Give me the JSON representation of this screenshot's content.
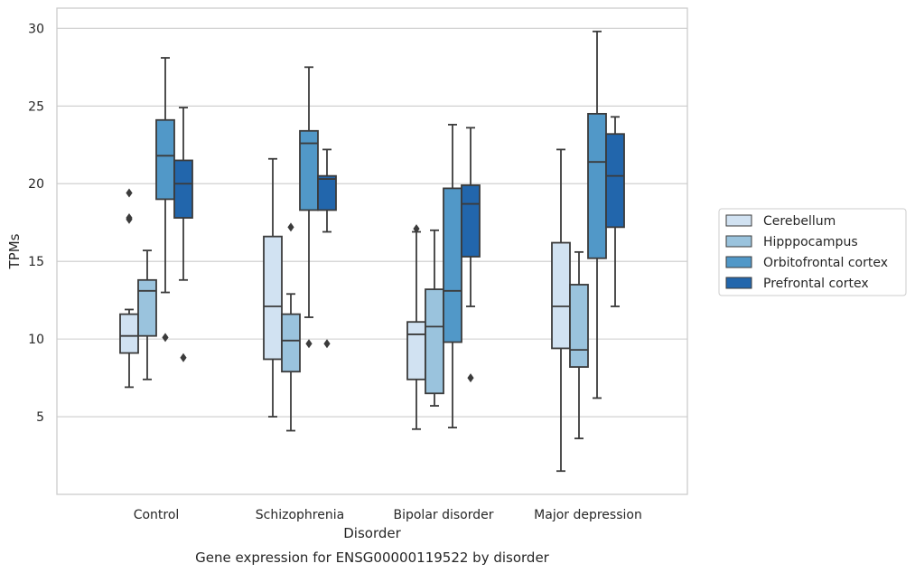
{
  "chart_data": {
    "type": "box",
    "caption": "Gene expression for ENSG00000119522 by disorder",
    "xlabel": "Disorder",
    "ylabel": "TPMs",
    "ylim": [
      0,
      31.3
    ],
    "yticks": [
      5,
      10,
      15,
      20,
      25,
      30
    ],
    "grid": "horizontal",
    "legend_position": "right",
    "categories": [
      "Control",
      "Schizophrenia",
      "Bipolar disorder",
      "Major depression"
    ],
    "series": [
      {
        "name": "Cerebellum",
        "color": "#d1e2f2",
        "boxes": [
          {
            "whisker_low": 6.9,
            "q1": 9.1,
            "median": 10.2,
            "q3": 11.6,
            "whisker_high": 11.9,
            "outliers": [
              19.4,
              17.7,
              17.8
            ]
          },
          {
            "whisker_low": 5.0,
            "q1": 8.7,
            "median": 12.1,
            "q3": 16.6,
            "whisker_high": 21.6,
            "outliers": []
          },
          {
            "whisker_low": 4.2,
            "q1": 7.4,
            "median": 10.3,
            "q3": 11.1,
            "whisker_high": 16.9,
            "outliers": [
              17.1
            ]
          },
          {
            "whisker_low": 1.5,
            "q1": 9.4,
            "median": 12.1,
            "q3": 16.2,
            "whisker_high": 22.2,
            "outliers": []
          }
        ]
      },
      {
        "name": "Hipppocampus",
        "color": "#9ac3dd",
        "boxes": [
          {
            "whisker_low": 7.4,
            "q1": 10.2,
            "median": 13.1,
            "q3": 13.8,
            "whisker_high": 15.7,
            "outliers": []
          },
          {
            "whisker_low": 4.1,
            "q1": 7.9,
            "median": 9.9,
            "q3": 11.6,
            "whisker_high": 12.9,
            "outliers": [
              17.2
            ]
          },
          {
            "whisker_low": 5.7,
            "q1": 6.5,
            "median": 10.8,
            "q3": 13.2,
            "whisker_high": 17.0,
            "outliers": []
          },
          {
            "whisker_low": 3.6,
            "q1": 8.2,
            "median": 9.3,
            "q3": 13.5,
            "whisker_high": 15.6,
            "outliers": []
          }
        ]
      },
      {
        "name": "Orbitofrontal cortex",
        "color": "#5198c8",
        "boxes": [
          {
            "whisker_low": 13.0,
            "q1": 19.0,
            "median": 21.8,
            "q3": 24.1,
            "whisker_high": 28.1,
            "outliers": [
              10.1
            ]
          },
          {
            "whisker_low": 11.4,
            "q1": 18.3,
            "median": 22.6,
            "q3": 23.4,
            "whisker_high": 27.5,
            "outliers": [
              9.7
            ]
          },
          {
            "whisker_low": 4.3,
            "q1": 9.8,
            "median": 13.1,
            "q3": 19.7,
            "whisker_high": 23.8,
            "outliers": []
          },
          {
            "whisker_low": 6.2,
            "q1": 15.2,
            "median": 21.4,
            "q3": 24.5,
            "whisker_high": 29.8,
            "outliers": []
          }
        ]
      },
      {
        "name": "Prefrontal cortex",
        "color": "#2266ac",
        "boxes": [
          {
            "whisker_low": 13.8,
            "q1": 17.8,
            "median": 20.0,
            "q3": 21.5,
            "whisker_high": 24.9,
            "outliers": [
              8.8
            ]
          },
          {
            "whisker_low": 16.9,
            "q1": 18.3,
            "median": 20.3,
            "q3": 20.5,
            "whisker_high": 22.2,
            "outliers": [
              9.7
            ]
          },
          {
            "whisker_low": 12.1,
            "q1": 15.3,
            "median": 18.7,
            "q3": 19.9,
            "whisker_high": 23.6,
            "outliers": [
              7.5
            ]
          },
          {
            "whisker_low": 12.1,
            "q1": 17.2,
            "median": 20.5,
            "q3": 23.2,
            "whisker_high": 24.3,
            "outliers": []
          }
        ]
      }
    ]
  }
}
